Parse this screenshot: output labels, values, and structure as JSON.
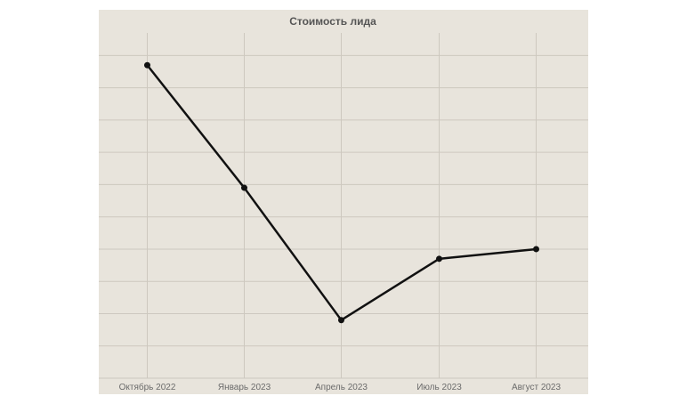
{
  "chart_data": {
    "type": "line",
    "title": "Стоимость лида",
    "xlabel": "",
    "ylabel": "",
    "categories": [
      "Октябрь 2022",
      "Январь 2023",
      "Апрель 2023",
      "Июль 2023",
      "Август 2023"
    ],
    "series": [
      {
        "values": [
          97,
          59,
          18,
          37,
          40
        ]
      }
    ],
    "ylim": [
      0,
      107
    ],
    "y_gridlines": [
      0,
      10,
      20,
      30,
      40,
      50,
      60,
      70,
      80,
      90,
      100
    ],
    "grid": true,
    "legend": "none",
    "colors": {
      "line": "#111111",
      "background": "#e8e4dc",
      "grid": "#cdc8bf",
      "tick_text": "#6b6b6b",
      "title_text": "#555555"
    }
  }
}
